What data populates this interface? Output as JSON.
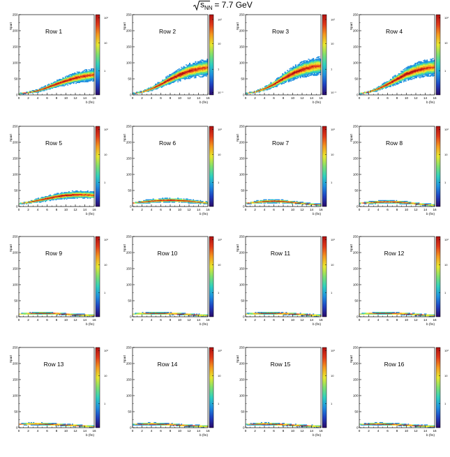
{
  "title": {
    "sqrt_symbol": "√",
    "s_text": "s",
    "nn_text": "NN",
    "rest": " = 7.7 GeV"
  },
  "axes": {
    "xlabel": "b (fm)",
    "ylabel": "Npart",
    "xticks": [
      "0",
      "2",
      "4",
      "6",
      "8",
      "10",
      "12",
      "14",
      "16"
    ],
    "yticks": [
      "0",
      "50",
      "100",
      "150",
      "200",
      "250"
    ],
    "xlim": [
      0,
      16
    ],
    "ylim": [
      0,
      250
    ]
  },
  "colorbar": {
    "scale": "log",
    "ticks_a": [
      "10²",
      "10",
      "1"
    ],
    "ticks_b": [
      "10²",
      "10",
      "1",
      "10⁻¹"
    ],
    "palette": [
      "#2a0a6a",
      "#1f3fbf",
      "#1f8fe0",
      "#2fd0c0",
      "#7fe070",
      "#e8e830",
      "#f59a20",
      "#e03a1a",
      "#b01010"
    ]
  },
  "chart_data": [
    {
      "type": "heatmap",
      "panel_label": "Row 1",
      "band": [
        {
          "b": 0,
          "n": 3
        },
        {
          "b": 2,
          "n": 6
        },
        {
          "b": 4,
          "n": 12
        },
        {
          "b": 6,
          "n": 22
        },
        {
          "b": 8,
          "n": 33
        },
        {
          "b": 10,
          "n": 43
        },
        {
          "b": 12,
          "n": 52
        },
        {
          "b": 14,
          "n": 58
        },
        {
          "b": 16,
          "n": 62
        }
      ]
    },
    {
      "type": "heatmap",
      "panel_label": "Row 2",
      "band": [
        {
          "b": 0,
          "n": 3
        },
        {
          "b": 2,
          "n": 8
        },
        {
          "b": 4,
          "n": 18
        },
        {
          "b": 6,
          "n": 32
        },
        {
          "b": 8,
          "n": 48
        },
        {
          "b": 10,
          "n": 62
        },
        {
          "b": 12,
          "n": 73
        },
        {
          "b": 14,
          "n": 80
        },
        {
          "b": 16,
          "n": 84
        }
      ]
    },
    {
      "type": "heatmap",
      "panel_label": "Row 3",
      "band": [
        {
          "b": 0,
          "n": 3
        },
        {
          "b": 2,
          "n": 8
        },
        {
          "b": 4,
          "n": 18
        },
        {
          "b": 6,
          "n": 32
        },
        {
          "b": 8,
          "n": 50
        },
        {
          "b": 10,
          "n": 66
        },
        {
          "b": 12,
          "n": 78
        },
        {
          "b": 14,
          "n": 86
        },
        {
          "b": 16,
          "n": 90
        }
      ]
    },
    {
      "type": "heatmap",
      "panel_label": "Row 4",
      "band": [
        {
          "b": 0,
          "n": 3
        },
        {
          "b": 2,
          "n": 8
        },
        {
          "b": 4,
          "n": 18
        },
        {
          "b": 6,
          "n": 32
        },
        {
          "b": 8,
          "n": 48
        },
        {
          "b": 10,
          "n": 64
        },
        {
          "b": 12,
          "n": 75
        },
        {
          "b": 14,
          "n": 82
        },
        {
          "b": 16,
          "n": 86
        }
      ]
    },
    {
      "type": "heatmap",
      "panel_label": "Row 5",
      "band": [
        {
          "b": 0,
          "n": 8
        },
        {
          "b": 2,
          "n": 12
        },
        {
          "b": 4,
          "n": 18
        },
        {
          "b": 6,
          "n": 24
        },
        {
          "b": 8,
          "n": 30
        },
        {
          "b": 10,
          "n": 34
        },
        {
          "b": 12,
          "n": 36
        },
        {
          "b": 14,
          "n": 36
        },
        {
          "b": 16,
          "n": 34
        }
      ]
    },
    {
      "type": "heatmap",
      "panel_label": "Row 6",
      "band": [
        {
          "b": 0,
          "n": 10
        },
        {
          "b": 2,
          "n": 13
        },
        {
          "b": 4,
          "n": 16
        },
        {
          "b": 6,
          "n": 18
        },
        {
          "b": 8,
          "n": 19
        },
        {
          "b": 10,
          "n": 18
        },
        {
          "b": 12,
          "n": 16
        },
        {
          "b": 14,
          "n": 13
        },
        {
          "b": 16,
          "n": 10
        }
      ]
    },
    {
      "type": "heatmap",
      "panel_label": "Row 7",
      "band": [
        {
          "b": 0,
          "n": 9
        },
        {
          "b": 2,
          "n": 12
        },
        {
          "b": 4,
          "n": 15
        },
        {
          "b": 6,
          "n": 16
        },
        {
          "b": 8,
          "n": 15
        },
        {
          "b": 10,
          "n": 12
        },
        {
          "b": 12,
          "n": 9
        },
        {
          "b": 14,
          "n": 6
        },
        {
          "b": 16,
          "n": 4
        }
      ]
    },
    {
      "type": "heatmap",
      "panel_label": "Row 8",
      "band": [
        {
          "b": 0,
          "n": 9
        },
        {
          "b": 2,
          "n": 11
        },
        {
          "b": 4,
          "n": 13
        },
        {
          "b": 6,
          "n": 14
        },
        {
          "b": 8,
          "n": 13
        },
        {
          "b": 10,
          "n": 11
        },
        {
          "b": 12,
          "n": 8
        },
        {
          "b": 14,
          "n": 5
        },
        {
          "b": 16,
          "n": 3
        }
      ]
    },
    {
      "type": "heatmap",
      "panel_label": "Row 9",
      "band": [
        {
          "b": 0,
          "n": 8
        },
        {
          "b": 2,
          "n": 9
        },
        {
          "b": 4,
          "n": 10
        },
        {
          "b": 6,
          "n": 10
        },
        {
          "b": 8,
          "n": 9
        },
        {
          "b": 10,
          "n": 7
        },
        {
          "b": 12,
          "n": 5
        },
        {
          "b": 14,
          "n": 4
        },
        {
          "b": 16,
          "n": 3
        }
      ]
    },
    {
      "type": "heatmap",
      "panel_label": "Row 10",
      "band": [
        {
          "b": 0,
          "n": 8
        },
        {
          "b": 2,
          "n": 9
        },
        {
          "b": 4,
          "n": 10
        },
        {
          "b": 6,
          "n": 10
        },
        {
          "b": 8,
          "n": 9
        },
        {
          "b": 10,
          "n": 8
        },
        {
          "b": 12,
          "n": 6
        },
        {
          "b": 14,
          "n": 4
        },
        {
          "b": 16,
          "n": 3
        }
      ]
    },
    {
      "type": "heatmap",
      "panel_label": "Row 11",
      "band": [
        {
          "b": 0,
          "n": 8
        },
        {
          "b": 2,
          "n": 9
        },
        {
          "b": 4,
          "n": 10
        },
        {
          "b": 6,
          "n": 10
        },
        {
          "b": 8,
          "n": 9
        },
        {
          "b": 10,
          "n": 8
        },
        {
          "b": 12,
          "n": 6
        },
        {
          "b": 14,
          "n": 4
        },
        {
          "b": 16,
          "n": 3
        }
      ]
    },
    {
      "type": "heatmap",
      "panel_label": "Row 12",
      "band": [
        {
          "b": 0,
          "n": 8
        },
        {
          "b": 2,
          "n": 9
        },
        {
          "b": 4,
          "n": 10
        },
        {
          "b": 6,
          "n": 10
        },
        {
          "b": 8,
          "n": 9
        },
        {
          "b": 10,
          "n": 8
        },
        {
          "b": 12,
          "n": 6
        },
        {
          "b": 14,
          "n": 4
        },
        {
          "b": 16,
          "n": 3
        }
      ]
    },
    {
      "type": "heatmap",
      "panel_label": "Row 13",
      "band": [
        {
          "b": 0,
          "n": 10
        },
        {
          "b": 2,
          "n": 11
        },
        {
          "b": 4,
          "n": 11
        },
        {
          "b": 6,
          "n": 10
        },
        {
          "b": 8,
          "n": 9
        },
        {
          "b": 10,
          "n": 7
        },
        {
          "b": 12,
          "n": 6
        },
        {
          "b": 14,
          "n": 4
        },
        {
          "b": 16,
          "n": 3
        }
      ]
    },
    {
      "type": "heatmap",
      "panel_label": "Row 14",
      "band": [
        {
          "b": 0,
          "n": 9
        },
        {
          "b": 2,
          "n": 10
        },
        {
          "b": 4,
          "n": 11
        },
        {
          "b": 6,
          "n": 10
        },
        {
          "b": 8,
          "n": 9
        },
        {
          "b": 10,
          "n": 7
        },
        {
          "b": 12,
          "n": 5
        },
        {
          "b": 14,
          "n": 4
        },
        {
          "b": 16,
          "n": 3
        }
      ]
    },
    {
      "type": "heatmap",
      "panel_label": "Row 15",
      "band": [
        {
          "b": 0,
          "n": 9
        },
        {
          "b": 2,
          "n": 10
        },
        {
          "b": 4,
          "n": 11
        },
        {
          "b": 6,
          "n": 10
        },
        {
          "b": 8,
          "n": 9
        },
        {
          "b": 10,
          "n": 7
        },
        {
          "b": 12,
          "n": 5
        },
        {
          "b": 14,
          "n": 4
        },
        {
          "b": 16,
          "n": 3
        }
      ]
    },
    {
      "type": "heatmap",
      "panel_label": "Row 16",
      "band": [
        {
          "b": 0,
          "n": 9
        },
        {
          "b": 2,
          "n": 10
        },
        {
          "b": 4,
          "n": 11
        },
        {
          "b": 6,
          "n": 10
        },
        {
          "b": 8,
          "n": 9
        },
        {
          "b": 10,
          "n": 7
        },
        {
          "b": 12,
          "n": 5
        },
        {
          "b": 14,
          "n": 4
        },
        {
          "b": 16,
          "n": 3
        }
      ]
    }
  ]
}
